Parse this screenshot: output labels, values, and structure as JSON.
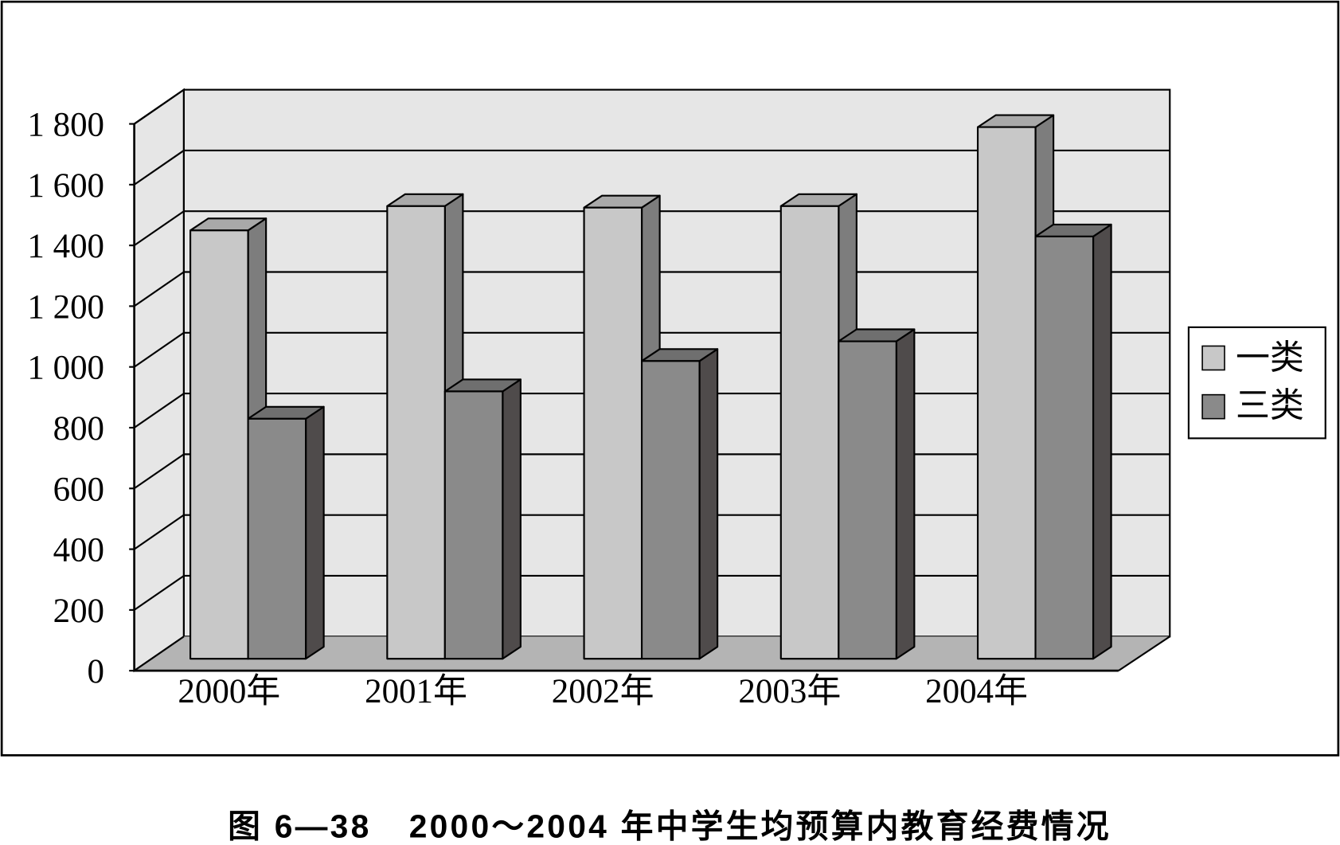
{
  "chart_data": {
    "type": "bar",
    "projection": "3d",
    "figure_number": "图 6—38",
    "title": "2000～2004 年中学生均预算内教育经费情况",
    "categories": [
      "2000年",
      "2001年",
      "2002年",
      "2003年",
      "2004年"
    ],
    "series": [
      {
        "name": "一类",
        "values": [
          1410,
          1490,
          1485,
          1490,
          1750
        ],
        "color": "#c8c8c8",
        "top_color": "#a9a9a9",
        "side_color": "#7d7d7d"
      },
      {
        "name": "三类",
        "values": [
          790,
          880,
          980,
          1045,
          1390
        ],
        "color": "#8a8a8a",
        "top_color": "#6f6f6f",
        "side_color": "#4f4b4b"
      }
    ],
    "ylim": [
      0,
      1800
    ],
    "yticks": [
      0,
      200,
      400,
      600,
      800,
      1000,
      1200,
      1400,
      1600,
      1800
    ],
    "ytick_labels": [
      "0",
      "200",
      "400",
      "600",
      "800",
      "1 000",
      "1 200",
      "1 400",
      "1 600",
      "1 800"
    ],
    "grid": true,
    "legend_position": "right",
    "wall_color": "#e6e6e6",
    "floor_color": "#b4b4b4"
  }
}
